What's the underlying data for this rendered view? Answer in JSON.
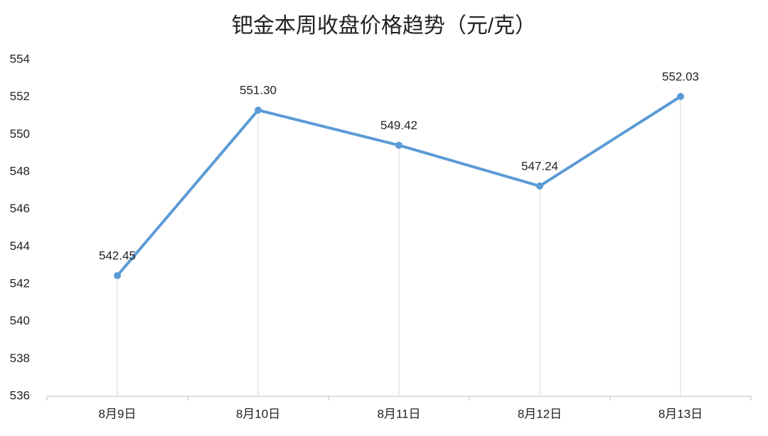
{
  "chart_data": {
    "type": "line",
    "title": "钯金本周收盘价格趋势（元/克）",
    "categories": [
      "8月9日",
      "8月10日",
      "8月11日",
      "8月12日",
      "8月13日"
    ],
    "values": [
      542.45,
      551.3,
      549.42,
      547.24,
      552.03
    ],
    "value_labels": [
      "542.45",
      "551.30",
      "549.42",
      "547.24",
      "552.03"
    ],
    "color": "#5b9bd5",
    "ylim": [
      536,
      554
    ],
    "yticks": [
      536,
      538,
      540,
      542,
      544,
      546,
      548,
      550,
      552,
      554
    ],
    "grid": false
  }
}
